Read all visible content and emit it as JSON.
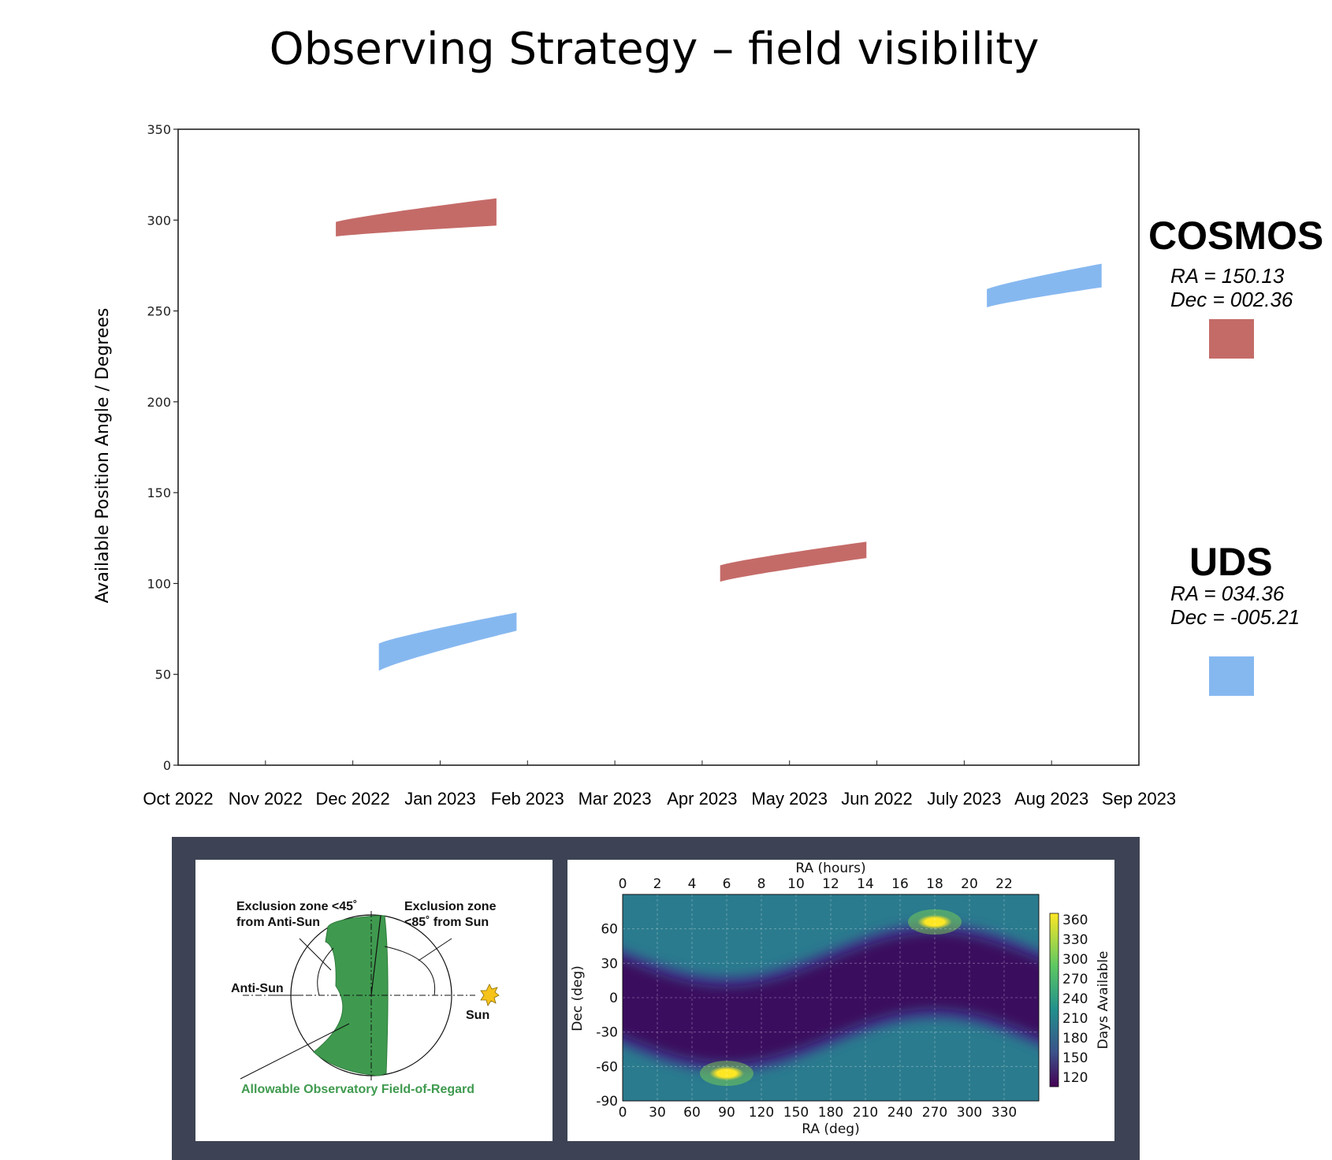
{
  "slide": {
    "title": "Observing Strategy – field visibility"
  },
  "chart_data": [
    {
      "type": "area",
      "ylabel": "Available Position Angle / Degrees",
      "xlabel": "",
      "ylim": [
        0,
        350
      ],
      "yticks": [
        0,
        50,
        100,
        150,
        200,
        250,
        300,
        350
      ],
      "xtick_labels": [
        "Oct 2022",
        "Nov 2022",
        "Dec 2022",
        "Jan 2023",
        "Feb 2023",
        "Mar 2023",
        "Apr 2023",
        "May 2023",
        "Jun 2022",
        "July 2023",
        "Aug 2023",
        "Sep 2023"
      ],
      "grid": false,
      "series": [
        {
          "name": "COSMOS",
          "color": "#c46b68",
          "windows": [
            {
              "start": "2022-11-25",
              "end": "2023-01-20",
              "lower": [
                291,
                297
              ],
              "upper": [
                299,
                312
              ]
            },
            {
              "start": "2023-04-08",
              "end": "2023-05-29",
              "lower": [
                101,
                114
              ],
              "upper": [
                110,
                123
              ]
            }
          ]
        },
        {
          "name": "UDS",
          "color": "#86b8f0",
          "windows": [
            {
              "start": "2022-12-10",
              "end": "2023-01-27",
              "lower": [
                52,
                74
              ],
              "upper": [
                67,
                84
              ]
            },
            {
              "start": "2023-07-10",
              "end": "2023-08-19",
              "lower": [
                252,
                263
              ],
              "upper": [
                262,
                276
              ]
            }
          ]
        }
      ]
    },
    {
      "type": "heatmap",
      "xlabel": "RA (deg)",
      "ylabel": "Dec (deg)",
      "top_xlabel": "RA (hours)",
      "xlim": [
        0,
        360
      ],
      "ylim": [
        -90,
        90
      ],
      "xticks": [
        0,
        30,
        60,
        90,
        120,
        150,
        180,
        210,
        240,
        270,
        300,
        330
      ],
      "yticks": [
        -90,
        -60,
        -30,
        0,
        30,
        60
      ],
      "top_xticks": [
        0,
        2,
        4,
        6,
        8,
        10,
        12,
        14,
        16,
        18,
        20,
        22
      ],
      "colorbar_label": "Days Available",
      "colorbar_ticks": [
        120,
        150,
        180,
        210,
        240,
        270,
        300,
        330,
        360
      ],
      "colormap": "viridis",
      "hotspots": [
        {
          "ra": 90,
          "dec": -66,
          "days": 365
        },
        {
          "ra": 270,
          "dec": 66,
          "days": 365
        }
      ],
      "minimum_band": "ecliptic, ~110 days",
      "background_days": 210
    }
  ],
  "legend": {
    "cosmos": {
      "name": "COSMOS",
      "ra": "RA = 150.13",
      "dec": "Dec = 002.36",
      "color": "#c46b68"
    },
    "uds": {
      "name": "UDS",
      "ra": "RA = 034.36",
      "dec": "Dec = -005.21",
      "color": "#86b8f0"
    }
  },
  "diagram": {
    "exclusion_anti_sun": [
      "Exclusion zone <45˚",
      "from Anti-Sun"
    ],
    "exclusion_sun": [
      "Exclusion zone",
      "<85˚ from Sun"
    ],
    "anti_sun": "Anti-Sun",
    "sun": "Sun",
    "field_of_regard": "Allowable Observatory Field-of-Regard",
    "green": "#3f9a4f"
  }
}
